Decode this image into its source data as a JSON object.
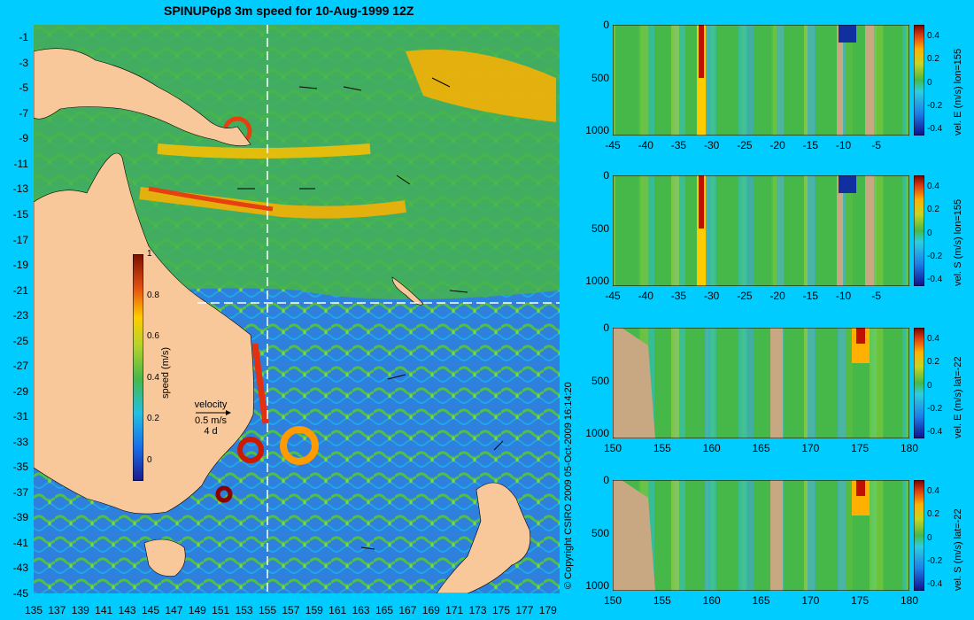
{
  "title": "SPINUP6p8 3m speed for 10-Aug-1999 12Z",
  "copyright": "© Copyright CSIRO 2009   05-Oct-2009 16:14:20",
  "map": {
    "lat_ticks": [
      "-1",
      "-3",
      "-5",
      "-7",
      "-9",
      "-11",
      "-13",
      "-15",
      "-17",
      "-19",
      "-21",
      "-23",
      "-25",
      "-27",
      "-29",
      "-31",
      "-33",
      "-35",
      "-37",
      "-39",
      "-41",
      "-43",
      "-45"
    ],
    "lon_ticks": [
      "135",
      "137",
      "139",
      "141",
      "143",
      "145",
      "147",
      "149",
      "151",
      "153",
      "155",
      "157",
      "159",
      "161",
      "163",
      "165",
      "167",
      "169",
      "171",
      "173",
      "175",
      "177",
      "179"
    ],
    "lon_range": [
      135,
      180
    ],
    "lat_range": [
      -45,
      0
    ],
    "section_lon": 155,
    "section_lat": -22,
    "colorbar_label": "speed (m/s)",
    "colorbar_ticks": [
      "1",
      "0.8",
      "0.6",
      "0.4",
      "0.2",
      "0"
    ],
    "colorbar_range": [
      -0.1,
      1.0
    ],
    "velocity_key": {
      "label": "velocity",
      "speed": "0.5 m/s",
      "time": "4 d"
    },
    "colors": {
      "land": "#f8c89a",
      "ocean_low": "#2e72d8",
      "ocean_mid": "#4fb84a",
      "high": "#ffcc00",
      "max": "#cc1a00"
    }
  },
  "panels": [
    {
      "id": "lon155_E",
      "label": "vel. E (m/s) lon=155",
      "x_ticks": [
        "-45",
        "-40",
        "-35",
        "-30",
        "-25",
        "-20",
        "-15",
        "-10",
        "-5"
      ],
      "x_range": [
        -45,
        0
      ]
    },
    {
      "id": "lon155_S",
      "label": "vel. S (m/s) lon=155",
      "x_ticks": [
        "-45",
        "-40",
        "-35",
        "-30",
        "-25",
        "-20",
        "-15",
        "-10",
        "-5"
      ],
      "x_range": [
        -45,
        0
      ]
    },
    {
      "id": "lat22_E",
      "label": "vel. E (m/s) lat=-22",
      "x_ticks": [
        "150",
        "155",
        "160",
        "165",
        "170",
        "175",
        "180"
      ],
      "x_range": [
        150,
        180
      ]
    },
    {
      "id": "lat22_S",
      "label": "vel. S (m/s) lat=-22",
      "x_ticks": [
        "150",
        "155",
        "160",
        "165",
        "170",
        "175",
        "180"
      ],
      "x_range": [
        150,
        180
      ]
    }
  ],
  "panel_y_ticks": [
    "0",
    "500",
    "1000"
  ],
  "panel_depth_range": [
    0,
    1050
  ],
  "panel_colorbar_ticks": [
    "0.4",
    "0.2",
    "0",
    "-0.2",
    "-0.4"
  ],
  "panel_colorbar_range": [
    -0.45,
    0.5
  ]
}
